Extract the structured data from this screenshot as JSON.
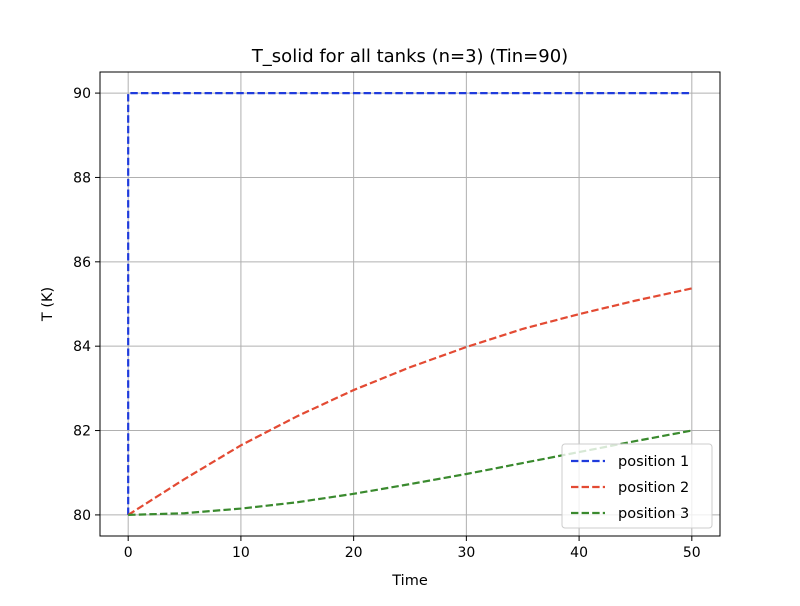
{
  "chart_data": {
    "type": "line",
    "title": "T_solid for all tanks (n=3) (Tin=90)",
    "xlabel": "Time",
    "ylabel": "T (K)",
    "xlim": [
      -2.5,
      52.5
    ],
    "ylim": [
      79.5,
      90.5
    ],
    "xticks": [
      0,
      10,
      20,
      30,
      40,
      50
    ],
    "xtick_labels": [
      "0",
      "10",
      "20",
      "30",
      "40",
      "50"
    ],
    "yticks": [
      80,
      82,
      84,
      86,
      88,
      90
    ],
    "ytick_labels": [
      "80",
      "82",
      "84",
      "86",
      "88",
      "90"
    ],
    "grid": true,
    "legend_position": "lower-right",
    "series": [
      {
        "name": "position 1",
        "color": "#1f3bdc",
        "line_style": "dashed",
        "x": [
          0,
          0,
          5,
          10,
          15,
          20,
          25,
          30,
          35,
          40,
          45,
          50
        ],
        "y": [
          80,
          90,
          90,
          90,
          90,
          90,
          90,
          90,
          90,
          90,
          90,
          90
        ]
      },
      {
        "name": "position 2",
        "color": "#e34a33",
        "line_style": "dashed",
        "x": [
          0,
          5,
          10,
          15,
          20,
          25,
          30,
          35,
          40,
          45,
          50
        ],
        "y": [
          80,
          80.85,
          81.65,
          82.34,
          82.96,
          83.5,
          83.98,
          84.41,
          84.76,
          85.08,
          85.37
        ]
      },
      {
        "name": "position 3",
        "color": "#3a8a2e",
        "line_style": "dashed",
        "x": [
          0,
          5,
          10,
          15,
          20,
          25,
          30,
          35,
          40,
          45,
          50
        ],
        "y": [
          80,
          80.04,
          80.15,
          80.3,
          80.5,
          80.73,
          80.97,
          81.23,
          81.49,
          81.75,
          82.0
        ]
      }
    ]
  }
}
